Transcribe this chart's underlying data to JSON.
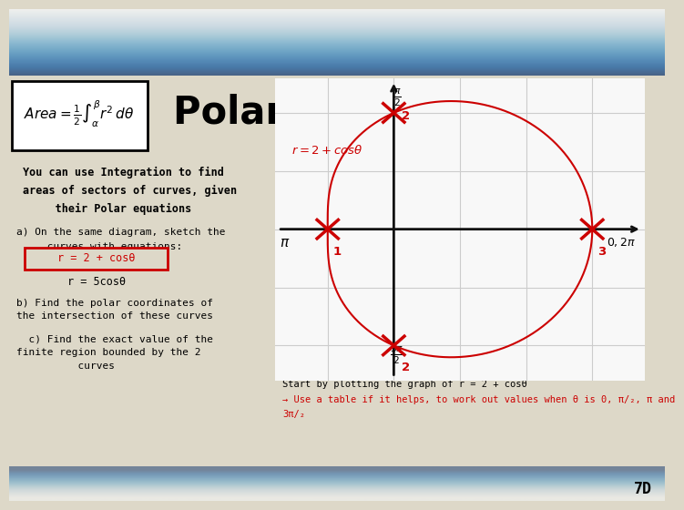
{
  "title": "Polar Coordinates",
  "bg_color": "#ddd8c8",
  "top_grad_top": "#6699bb",
  "top_grad_bot": "#c8bfa8",
  "bot_grad_top": "#c8bfa8",
  "bot_grad_bot": "#88aacc",
  "slide_number": "7D",
  "body_text_line1": "You can use Integration to find",
  "body_text_line2": "areas of sectors of curves, given",
  "body_text_line3": "     their Polar equations",
  "question_a1": "a) On the same diagram, sketch the",
  "question_a2": "     curves with equations:",
  "eq1": "r = 2 + cosθ",
  "eq2": "r = 5cosθ",
  "question_b1": "b) Find the polar coordinates of",
  "question_b2": "the intersection of these curves",
  "question_c1": "  c) Find the exact value of the",
  "question_c2": "finite region bounded by the 2",
  "question_c3": "          curves",
  "note_b": "Start by plotting the graph of r = 2 + cosθ",
  "note_c1": "→ Use a table if it helps, to work out values when θ is 0, π/₂, π and",
  "note_c2": "3π/₂",
  "curve_color": "#cc0000",
  "grid_color": "#cccccc",
  "plot_bg": "#f8f8f8",
  "axis_color": "#111111"
}
